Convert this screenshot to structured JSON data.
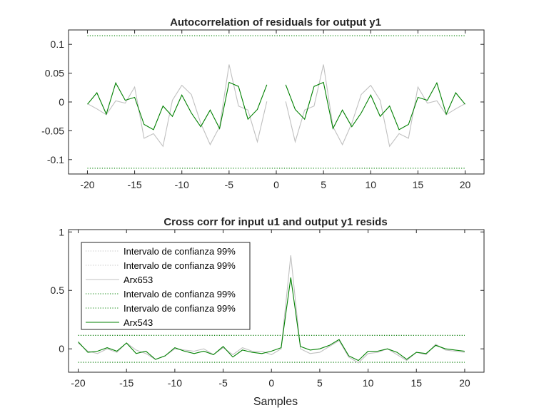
{
  "colors": {
    "axes": "#262626",
    "gray_series": "#c0c0c0",
    "green_series": "#008000",
    "background": "#ffffff"
  },
  "chart_data": [
    {
      "type": "line",
      "title": "Autocorrelation of residuals for output y1",
      "xlabel": "",
      "ylabel": "",
      "xlim": [
        -22,
        22
      ],
      "ylim": [
        -0.125,
        0.125
      ],
      "xticks": [
        -20,
        -15,
        -10,
        -5,
        0,
        5,
        10,
        15,
        20
      ],
      "xtick_labels": [
        "-20",
        "-15",
        "-10",
        "-5",
        "0",
        "5",
        "10",
        "15",
        "20"
      ],
      "yticks": [
        -0.1,
        -0.05,
        0,
        0.05,
        0.1
      ],
      "ytick_labels": [
        "-0.1",
        "-0.05",
        "0",
        "0.05",
        "0.1"
      ],
      "x": [
        -20,
        -19,
        -18,
        -17,
        -16,
        -15,
        -14,
        -13,
        -12,
        -11,
        -10,
        -9,
        -8,
        -7,
        -6,
        -5,
        -4,
        -3,
        -2,
        -1
      ],
      "series": [
        {
          "color": "gray_series",
          "style": "solid",
          "values": [
            -0.003,
            -0.012,
            -0.022,
            0.002,
            -0.002,
            0.026,
            -0.063,
            -0.055,
            -0.077,
            0.003,
            0.029,
            0.013,
            -0.037,
            -0.074,
            -0.043,
            0.065,
            -0.007,
            -0.014,
            -0.069,
            0.001
          ]
        },
        {
          "color": "green_series",
          "style": "solid",
          "values": [
            -0.004,
            0.016,
            -0.021,
            0.033,
            0.003,
            0.008,
            -0.039,
            -0.048,
            -0.007,
            -0.025,
            0.012,
            -0.019,
            -0.043,
            -0.014,
            -0.046,
            0.034,
            0.027,
            -0.03,
            -0.013,
            0.03
          ]
        }
      ],
      "confidence_bounds": [
        {
          "color": "green_series",
          "style": "dotted",
          "values": [
            0.115,
            -0.115
          ]
        }
      ],
      "mirrored": true,
      "grid": false
    },
    {
      "type": "line",
      "title": "Cross corr for input u1 and output y1 resids",
      "xlabel": "Samples",
      "ylabel": "",
      "xlim": [
        -21,
        22
      ],
      "ylim": [
        -0.2,
        1.02
      ],
      "xticks": [
        -20,
        -15,
        -10,
        -5,
        0,
        5,
        10,
        15,
        20
      ],
      "xtick_labels": [
        "-20",
        "-15",
        "-10",
        "-5",
        "0",
        "5",
        "10",
        "15",
        "20"
      ],
      "yticks": [
        0,
        0.5,
        1
      ],
      "ytick_labels": [
        "0",
        "0.5",
        "1"
      ],
      "x": [
        -20,
        -19,
        -18,
        -17,
        -16,
        -15,
        -14,
        -13,
        -12,
        -11,
        -10,
        -9,
        -8,
        -7,
        -6,
        -5,
        -4,
        -3,
        -2,
        -1,
        0,
        1,
        2,
        3,
        4,
        5,
        6,
        7,
        8,
        9,
        10,
        11,
        12,
        13,
        14,
        15,
        16,
        17,
        18,
        19,
        20
      ],
      "series": [
        {
          "name": "Arx653",
          "color": "gray_series",
          "style": "solid",
          "values": [
            0.05,
            -0.02,
            -0.04,
            0.0,
            -0.03,
            0.05,
            -0.01,
            -0.04,
            -0.09,
            -0.06,
            0.0,
            -0.01,
            -0.02,
            0.0,
            -0.05,
            0.01,
            -0.05,
            0.01,
            -0.02,
            -0.02,
            -0.05,
            0.0,
            0.8,
            0.0,
            -0.04,
            -0.03,
            0.02,
            0.07,
            -0.07,
            -0.12,
            -0.04,
            -0.03,
            0.0,
            -0.05,
            -0.1,
            -0.03,
            -0.05,
            0.04,
            -0.01,
            -0.02,
            -0.03
          ]
        },
        {
          "name": "Arx543",
          "color": "green_series",
          "style": "solid",
          "values": [
            0.06,
            -0.03,
            -0.02,
            0.01,
            -0.02,
            0.05,
            -0.04,
            -0.02,
            -0.09,
            -0.06,
            0.01,
            -0.02,
            -0.04,
            -0.02,
            -0.05,
            0.02,
            -0.07,
            -0.01,
            -0.03,
            -0.04,
            -0.02,
            0.01,
            0.61,
            0.02,
            -0.01,
            0.0,
            0.03,
            0.08,
            -0.06,
            -0.1,
            -0.02,
            -0.02,
            0.0,
            -0.03,
            -0.09,
            -0.03,
            -0.04,
            0.03,
            0.0,
            -0.01,
            -0.02
          ]
        }
      ],
      "confidence_bounds": [
        {
          "color": "gray_series",
          "style": "dotted",
          "values": [
            0.115,
            -0.115
          ]
        },
        {
          "color": "green_series",
          "style": "dotted",
          "values": [
            0.115,
            -0.115
          ]
        }
      ],
      "legend": {
        "placement": "top-left",
        "entries": [
          {
            "label": "Intervalo de confianza 99%",
            "color": "gray_series",
            "style": "dotted"
          },
          {
            "label": "Intervalo de confianza 99%",
            "color": "gray_series",
            "style": "dotted"
          },
          {
            "label": "Arx653",
            "color": "gray_series",
            "style": "solid"
          },
          {
            "label": "Intervalo de confianza 99%",
            "color": "green_series",
            "style": "dotted"
          },
          {
            "label": "Intervalo de confianza 99%",
            "color": "green_series",
            "style": "dotted"
          },
          {
            "label": "Arx543",
            "color": "green_series",
            "style": "solid"
          }
        ]
      },
      "grid": false
    }
  ]
}
